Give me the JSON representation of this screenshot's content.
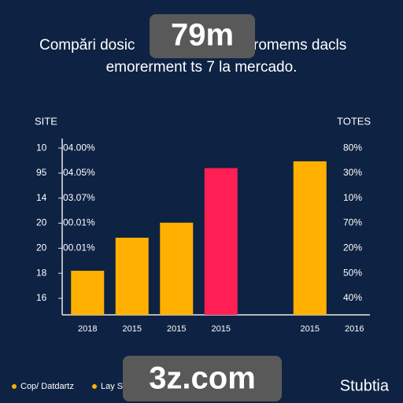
{
  "chart_data": {
    "type": "bar",
    "title": [
      "Compări dosic",
      "romems dacls",
      "emorerment ts 7 la mercado."
    ],
    "badges": [
      "79m",
      "3z.com"
    ],
    "brand": "Stubtia",
    "ylabel": "SITE",
    "y2label": "TOTES",
    "categories": [
      "2018",
      "2015",
      "2015",
      "2015",
      null,
      "2015",
      "2016"
    ],
    "values": [
      2.1,
      3.42,
      4.02,
      6.2,
      null,
      6.47,
      null
    ],
    "colors": [
      "#ffb000",
      "#ffb000",
      "#ffb000",
      "#ff1f55",
      null,
      "#ffb000",
      null
    ],
    "ylim": [
      0.34,
      7.38
    ],
    "yticks": [
      {
        "value": 7,
        "label": "10"
      },
      {
        "value": 6,
        "label": "95"
      },
      {
        "value": 5,
        "label": "14"
      },
      {
        "value": 4,
        "label": "20"
      },
      {
        "value": 3,
        "label": "20"
      },
      {
        "value": 2,
        "label": "18"
      },
      {
        "value": 1,
        "label": "16"
      }
    ],
    "inner_labels": [
      "04.00%",
      "04.05%",
      "03.07%",
      "00.01%",
      "00.01%"
    ],
    "y2lim": [
      0.34,
      7.38
    ],
    "y2ticks": [
      {
        "value": 7,
        "label": "80%"
      },
      {
        "value": 6,
        "label": "30%"
      },
      {
        "value": 5,
        "label": "10%"
      },
      {
        "value": 4,
        "label": "70%"
      },
      {
        "value": 3,
        "label": "20%"
      },
      {
        "value": 2,
        "label": "50%"
      },
      {
        "value": 1,
        "label": "40%"
      }
    ],
    "legend": [
      {
        "name": "Cop/ Datdartz",
        "color": "#ffb000"
      },
      {
        "name": "Lay S",
        "color": "#ffb000"
      }
    ]
  }
}
